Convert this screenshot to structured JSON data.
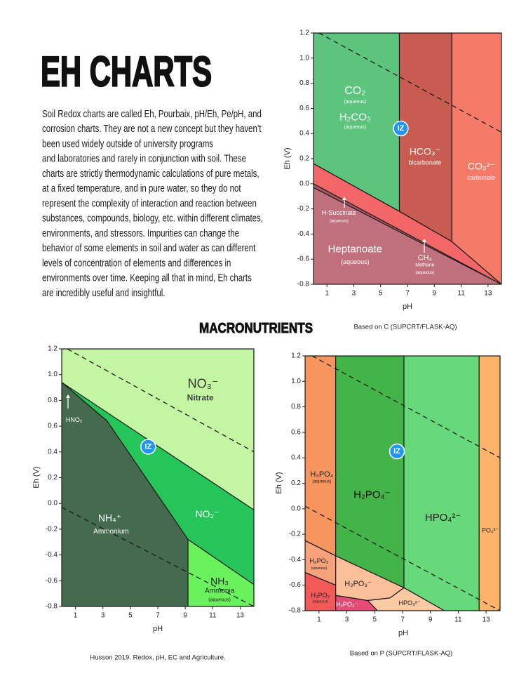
{
  "header": {
    "title": "EH CHARTS"
  },
  "body": [
    "Soil Redox charts are called Eh, Pourbaix, pH/Eh, Pe/pH, and",
    "corrosion charts. They are not a new concept but they haven’t",
    "been used widely outside of university programs",
    "and laboratories and rarely in conjunction with soil. These",
    "charts are strictly thermodynamic calculations of pure metals,",
    "at a fixed temperature, and in pure water, so they do not",
    "represent the complexity of interaction and reaction between",
    "substances, compounds, biology, etc. within different climates,",
    "environments, and stressors. Impurities can change the",
    "behavior of some elements in soil and water as can different",
    "levels of concentration of elements and differences in",
    "environments over time. Keeping all that in mind, Eh charts",
    "are incredibly useful and insightful."
  ],
  "section_title": "MACRONUTRIENTS",
  "diagrams": [
    {
      "xlabel": "pH",
      "ylabel": "Eh (V)",
      "xlim": [
        0,
        14
      ],
      "ylim": [
        -0.8,
        1.2
      ],
      "xticks": [
        1,
        3,
        5,
        7,
        9,
        11,
        13
      ],
      "yticks": [
        1.2,
        {
          "value": 1,
          "label": "1.0"
        },
        0.8,
        0.6,
        0.4,
        0.2,
        {
          "value": 0,
          "label": "0.0"
        },
        -0.2,
        -0.4,
        -0.6,
        -0.8
      ],
      "regions": [
        {
          "color": "#5cc47c",
          "x": [
            0,
            6.4,
            6.4,
            0
          ],
          "y": [
            1.2,
            1.2,
            -0.22,
            0.16
          ]
        },
        {
          "color": "#c95c50",
          "x": [
            6.4,
            10.3,
            10.3,
            6.4
          ],
          "y": [
            1.2,
            1.2,
            -0.46,
            -0.22
          ]
        },
        {
          "color": "#f57b68",
          "x": [
            10.3,
            14,
            14,
            10.3
          ],
          "y": [
            1.2,
            1.2,
            -0.8,
            -0.46
          ]
        },
        {
          "color": "#f26668",
          "x": [
            0,
            6.4,
            10.3,
            14,
            14,
            0
          ],
          "y": [
            0.16,
            -0.22,
            -0.46,
            -0.8,
            -0.8,
            0
          ]
        },
        {
          "color": "#c0707c",
          "x": [
            0,
            14,
            0
          ],
          "y": [
            -0.03,
            -0.8,
            -0.8
          ]
        }
      ],
      "dashed_lines": [
        {
          "x": [
            0.4,
            14
          ],
          "y": [
            1.2,
            0.41
          ]
        }
      ],
      "labels": [
        "CO₂",
        "(aqueous)",
        "H₂CO₃",
        "(aqueous)",
        "IZ",
        "HCO₃⁻",
        "bicarbonate",
        "CO₃²⁻",
        "carbonate",
        "H-Succinate",
        "(aqueous)",
        "Heptanoate",
        "(aqueous)",
        "CH₄",
        "Methane",
        "(aqueous)"
      ],
      "credit": "Based on C  (SUPCRT/FLASK-AQ)"
    },
    {
      "xlabel": "pH",
      "ylabel": "Eh (V)",
      "xlim": [
        0,
        14
      ],
      "ylim": [
        -0.8,
        1.2
      ],
      "xticks": [
        1,
        3,
        5,
        7,
        9,
        11,
        13
      ],
      "yticks": [
        1.2,
        {
          "value": 1,
          "label": "1.0"
        },
        0.8,
        0.6,
        0.4,
        0.2,
        {
          "value": 0,
          "label": "0.0"
        },
        -0.2,
        -0.4,
        -0.6,
        -0.8
      ],
      "regions": [
        {
          "color": "#c4f5a2",
          "x": [
            0,
            14,
            14,
            0
          ],
          "y": [
            1.2,
            1.2,
            -0.8,
            -0.8
          ]
        },
        {
          "color": "#26c55a",
          "x": [
            0,
            14,
            14,
            9.2,
            3.3
          ],
          "y": [
            0.94,
            -0.05,
            -0.63,
            -0.28,
            0.64
          ]
        },
        {
          "color": "#456b4f",
          "x": [
            0,
            3.3,
            9.2,
            9.2,
            0
          ],
          "y": [
            0.94,
            0.64,
            -0.28,
            -0.8,
            -0.8
          ]
        },
        {
          "color": "#6af25c",
          "x": [
            9.2,
            14,
            14,
            9.2
          ],
          "y": [
            -0.28,
            -0.63,
            -0.8,
            -0.8
          ]
        }
      ],
      "dashed_lines": [
        {
          "x": [
            0.4,
            14
          ],
          "y": [
            1.2,
            0.4
          ]
        },
        {
          "x": [
            0,
            14
          ],
          "y": [
            -0.03,
            -0.8
          ]
        }
      ],
      "labels": [
        "NO₃⁻",
        "Nitrate",
        "HNO₂",
        "IZ",
        "NO₂⁻",
        "NH₄⁺",
        "Ammonium",
        "NH₃",
        "Ammonia",
        "(aqueous)"
      ],
      "credit": "Husson 2019. Redox, pH, EC and Agriculture."
    },
    {
      "xlabel": "pH",
      "ylabel": "Eh (V)",
      "xlim": [
        0,
        14
      ],
      "ylim": [
        -0.8,
        1.2
      ],
      "xticks": [
        1,
        3,
        5,
        7,
        9,
        11,
        13
      ],
      "yticks": [
        1.2,
        {
          "value": 1,
          "label": "1.0"
        },
        0.8,
        0.6,
        0.4,
        0.2,
        {
          "value": 0,
          "label": "0.0"
        },
        -0.2,
        -0.4,
        -0.6,
        -0.8
      ],
      "regions": [
        {
          "color": "#f7955f",
          "x": [
            0,
            2.2,
            2.2,
            0
          ],
          "y": [
            1.2,
            1.2,
            -0.37,
            -0.25
          ]
        },
        {
          "color": "#43b447",
          "x": [
            2.2,
            7.1,
            7.1,
            2.2
          ],
          "y": [
            1.2,
            1.2,
            -0.62,
            -0.37
          ]
        },
        {
          "color": "#66d97a",
          "x": [
            7.1,
            12.5,
            12.5,
            10,
            7.1
          ],
          "y": [
            1.2,
            1.2,
            -0.8,
            -0.8,
            -0.62
          ]
        },
        {
          "color": "#fbb46a",
          "x": [
            12.5,
            14,
            14,
            12.5
          ],
          "y": [
            1.2,
            1.2,
            -0.8,
            -0.8
          ]
        },
        {
          "color": "#f7a27a",
          "x": [
            0,
            2.2,
            2.2,
            0
          ],
          "y": [
            -0.25,
            -0.37,
            -0.6,
            -0.5
          ]
        },
        {
          "color": "#f25a5a",
          "x": [
            0,
            2.2,
            2.2,
            0
          ],
          "y": [
            -0.5,
            -0.6,
            -0.8,
            -0.8
          ]
        },
        {
          "color": "#e84a78",
          "x": [
            2.2,
            4.5,
            5.2,
            2.2
          ],
          "y": [
            -0.68,
            -0.72,
            -0.8,
            -0.8
          ]
        },
        {
          "color": "#fbbf9a",
          "x": [
            2.2,
            7.1,
            6.1,
            4.5,
            2.2
          ],
          "y": [
            -0.37,
            -0.62,
            -0.7,
            -0.72,
            -0.68
          ]
        },
        {
          "color": "#fccaa2",
          "x": [
            4.5,
            6.1,
            7.1,
            10,
            5.2
          ],
          "y": [
            -0.72,
            -0.7,
            -0.62,
            -0.8,
            -0.8
          ]
        }
      ],
      "dashed_lines": [
        {
          "x": [
            0.5,
            14
          ],
          "y": [
            1.2,
            0.4
          ]
        },
        {
          "x": [
            0,
            14
          ],
          "y": [
            0.02,
            -0.8
          ]
        }
      ],
      "labels": [
        "H₃PO₄",
        "(aqueous)",
        "IZ",
        "H₂PO₄⁻",
        "HPO₄²⁻",
        "PO₄³⁻",
        "H₃PO₃",
        "(aqueous)",
        "H₃PO₂",
        "(aqueous)",
        "H₂PO₂⁻",
        "H₂PO₃⁻",
        "HPO₃²⁻"
      ],
      "credit": "Based on P (SUPCRT/FLASK-AQ)"
    }
  ]
}
